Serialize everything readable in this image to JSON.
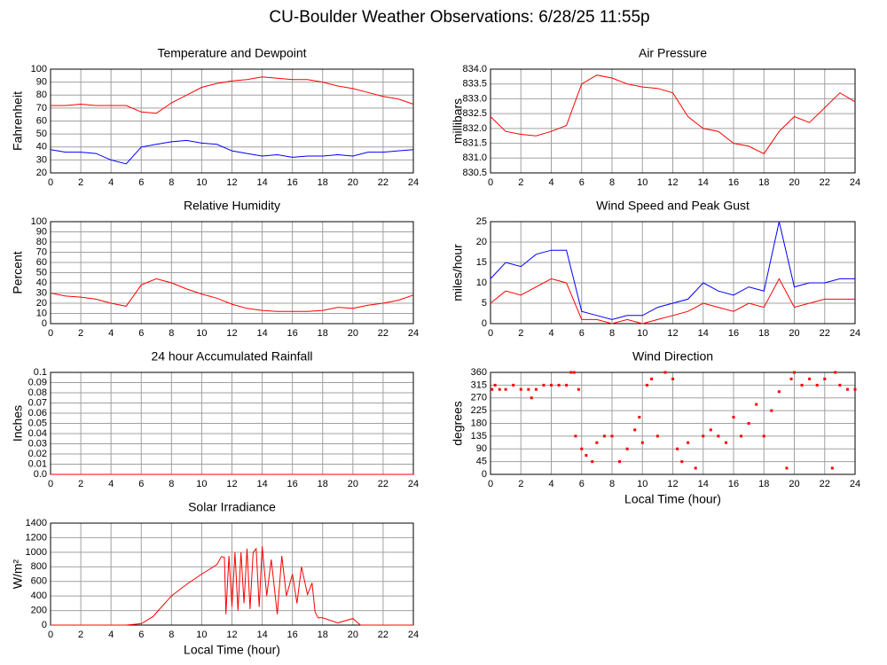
{
  "title": "CU-Boulder Weather Observations: 6/28/25 11:55p",
  "chart_data": [
    {
      "type": "line",
      "title": "Temperature and Dewpoint",
      "ylabel": "Fahrenheit",
      "x": [
        0,
        1,
        2,
        3,
        4,
        5,
        6,
        7,
        8,
        9,
        10,
        11,
        12,
        13,
        14,
        15,
        16,
        17,
        18,
        19,
        20,
        21,
        22,
        23,
        24
      ],
      "series": [
        {
          "color": "#ff0000",
          "values": [
            72,
            72,
            73,
            72,
            72,
            72,
            67,
            66,
            74,
            80,
            86,
            89,
            91,
            92,
            94,
            93,
            92,
            92,
            90,
            87,
            85,
            82,
            79,
            77,
            73
          ]
        },
        {
          "color": "#0000ff",
          "values": [
            38,
            36,
            36,
            35,
            30,
            27,
            40,
            42,
            44,
            45,
            43,
            42,
            37,
            35,
            33,
            34,
            32,
            33,
            33,
            34,
            33,
            36,
            36,
            37,
            38
          ]
        }
      ],
      "xlim": [
        0,
        24
      ],
      "xticks": [
        0,
        2,
        4,
        6,
        8,
        10,
        12,
        14,
        16,
        18,
        20,
        22,
        24
      ],
      "ylim": [
        20,
        100
      ],
      "yticks": [
        20,
        30,
        40,
        50,
        60,
        70,
        80,
        90,
        100
      ],
      "grid": true
    },
    {
      "type": "line",
      "title": "Air Pressure",
      "ylabel": "millibars",
      "x": [
        0,
        1,
        2,
        3,
        4,
        5,
        6,
        7,
        8,
        9,
        10,
        11,
        12,
        13,
        14,
        15,
        16,
        17,
        18,
        19,
        20,
        21,
        22,
        23,
        24
      ],
      "series": [
        {
          "color": "#ff0000",
          "values": [
            832.4,
            831.9,
            831.8,
            831.75,
            831.9,
            832.1,
            833.5,
            833.8,
            833.7,
            833.5,
            833.4,
            833.35,
            833.2,
            832.4,
            832.0,
            831.9,
            831.5,
            831.4,
            831.15,
            831.9,
            832.4,
            832.2,
            832.7,
            833.2,
            832.9
          ]
        }
      ],
      "xlim": [
        0,
        24
      ],
      "xticks": [
        0,
        2,
        4,
        6,
        8,
        10,
        12,
        14,
        16,
        18,
        20,
        22,
        24
      ],
      "ylim": [
        830.5,
        834
      ],
      "yticks": [
        830.5,
        {
          "value": 831,
          "label": "831.0"
        },
        831.5,
        {
          "value": 832,
          "label": "832.0"
        },
        832.5,
        {
          "value": 833,
          "label": "833.0"
        },
        833.5,
        {
          "value": 834,
          "label": "834.0"
        }
      ],
      "grid": true
    },
    {
      "type": "line",
      "title": "Relative Humidity",
      "ylabel": "Percent",
      "x": [
        0,
        1,
        2,
        3,
        4,
        5,
        6,
        7,
        8,
        9,
        10,
        11,
        12,
        13,
        14,
        15,
        16,
        17,
        18,
        19,
        20,
        21,
        22,
        23,
        24
      ],
      "series": [
        {
          "color": "#ff0000",
          "values": [
            30,
            27,
            26,
            24,
            20,
            17,
            38,
            44,
            40,
            34,
            29,
            25,
            19,
            15,
            13,
            12,
            12,
            12,
            13,
            16,
            15,
            18,
            20,
            23,
            28
          ]
        }
      ],
      "xlim": [
        0,
        24
      ],
      "xticks": [
        0,
        2,
        4,
        6,
        8,
        10,
        12,
        14,
        16,
        18,
        20,
        22,
        24
      ],
      "ylim": [
        0,
        100
      ],
      "yticks": [
        0,
        10,
        20,
        30,
        40,
        50,
        60,
        70,
        80,
        90,
        100
      ],
      "grid": true
    },
    {
      "type": "line",
      "title": "Wind Speed and Peak Gust",
      "ylabel": "miles/hour",
      "x": [
        0,
        1,
        2,
        3,
        4,
        5,
        6,
        7,
        8,
        9,
        10,
        11,
        12,
        13,
        14,
        15,
        16,
        17,
        18,
        19,
        20,
        21,
        22,
        23,
        24
      ],
      "series": [
        {
          "color": "#0000ff",
          "values": [
            11,
            15,
            14,
            17,
            18,
            18,
            3,
            2,
            1,
            2,
            2,
            4,
            5,
            6,
            10,
            8,
            7,
            9,
            8,
            25,
            9,
            10,
            10,
            11,
            11
          ]
        },
        {
          "color": "#ff0000",
          "values": [
            5,
            8,
            7,
            9,
            11,
            10,
            1,
            1,
            0,
            1,
            0,
            1,
            2,
            3,
            5,
            4,
            3,
            5,
            4,
            11,
            4,
            5,
            6,
            6,
            6
          ]
        }
      ],
      "xlim": [
        0,
        24
      ],
      "xticks": [
        0,
        2,
        4,
        6,
        8,
        10,
        12,
        14,
        16,
        18,
        20,
        22,
        24
      ],
      "ylim": [
        0,
        25
      ],
      "yticks": [
        0,
        5,
        10,
        15,
        20,
        25
      ],
      "grid": true
    },
    {
      "type": "line",
      "title": "24 hour Accumulated Rainfall",
      "ylabel": "Inches",
      "x": [
        0,
        24
      ],
      "series": [
        {
          "color": "#ff0000",
          "values": [
            0,
            0
          ]
        }
      ],
      "xlim": [
        0,
        24
      ],
      "xticks": [
        0,
        2,
        4,
        6,
        8,
        10,
        12,
        14,
        16,
        18,
        20,
        22,
        24
      ],
      "ylim": [
        0,
        0.1
      ],
      "yticks": [
        {
          "value": 0,
          "label": "0.0"
        },
        0.01,
        0.02,
        0.03,
        0.04,
        0.05,
        0.06,
        0.07,
        0.08,
        0.09,
        0.1
      ],
      "grid": true
    },
    {
      "type": "scatter",
      "title": "Wind Direction",
      "ylabel": "degrees",
      "xlabel": "Local Time (hour)",
      "x": [
        0.1,
        0.3,
        0.6,
        1,
        1.5,
        2,
        2.5,
        2.7,
        3,
        3.5,
        4,
        4.5,
        5,
        5.3,
        5.5,
        5.6,
        5.8,
        6,
        6.3,
        6.7,
        7,
        7.5,
        8,
        8.5,
        9,
        9.5,
        9.8,
        10,
        10.3,
        10.6,
        11,
        11.5,
        12,
        12.3,
        12.6,
        13,
        13.5,
        14,
        14.5,
        15,
        15.5,
        16,
        16.5,
        17,
        17.5,
        18,
        18.5,
        19,
        19.5,
        19.8,
        20,
        20.5,
        21,
        21.5,
        22,
        22.5,
        22.7,
        23,
        23.5,
        24
      ],
      "series": [
        {
          "color": "#ff0000",
          "values": [
            300,
            315,
            300,
            300,
            315,
            300,
            300,
            270,
            300,
            315,
            315,
            315,
            315,
            360,
            360,
            135,
            300,
            90,
            67,
            45,
            112,
            135,
            135,
            45,
            90,
            157,
            202,
            112,
            315,
            337,
            135,
            360,
            337,
            90,
            45,
            112,
            22,
            135,
            157,
            135,
            112,
            202,
            135,
            180,
            247,
            135,
            225,
            292,
            22,
            337,
            360,
            315,
            337,
            315,
            337,
            22,
            360,
            315,
            300,
            300
          ]
        }
      ],
      "xlim": [
        0,
        24
      ],
      "xticks": [
        0,
        2,
        4,
        6,
        8,
        10,
        12,
        14,
        16,
        18,
        20,
        22,
        24
      ],
      "ylim": [
        0,
        360
      ],
      "yticks": [
        0,
        45,
        90,
        135,
        180,
        225,
        270,
        315,
        360
      ],
      "grid": true
    },
    {
      "type": "line",
      "title": "Solar Irradiance",
      "ylabel": "W/m²",
      "xlabel": "Local Time (hour)",
      "x": [
        0,
        5,
        6,
        6.8,
        7,
        8,
        9,
        10,
        11,
        11.3,
        11.5,
        11.6,
        11.8,
        12,
        12.2,
        12.4,
        12.6,
        12.8,
        13,
        13.2,
        13.4,
        13.6,
        13.8,
        14,
        14.3,
        14.6,
        15,
        15.3,
        15.6,
        16,
        16.3,
        16.6,
        17,
        17.3,
        17.5,
        17.7,
        18,
        19,
        20,
        20.5,
        21,
        24
      ],
      "series": [
        {
          "color": "#ff0000",
          "values": [
            0,
            0,
            20,
            120,
            170,
            400,
            560,
            700,
            830,
            940,
            930,
            150,
            950,
            250,
            1000,
            200,
            1000,
            300,
            1050,
            220,
            1000,
            1050,
            250,
            1080,
            400,
            900,
            150,
            950,
            400,
            700,
            300,
            800,
            420,
            580,
            180,
            100,
            100,
            30,
            90,
            0,
            0,
            0
          ]
        }
      ],
      "xlim": [
        0,
        24
      ],
      "xticks": [
        0,
        2,
        4,
        6,
        8,
        10,
        12,
        14,
        16,
        18,
        20,
        22,
        24
      ],
      "ylim": [
        0,
        1400
      ],
      "yticks": [
        0,
        200,
        400,
        600,
        800,
        1000,
        1200,
        1400
      ],
      "grid": true
    }
  ]
}
